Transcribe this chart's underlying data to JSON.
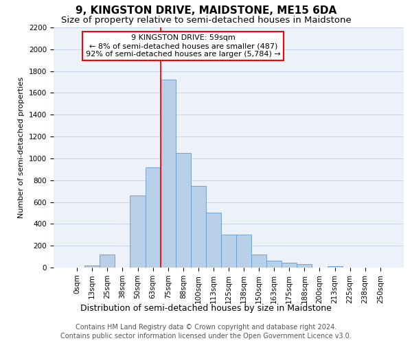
{
  "title1": "9, KINGSTON DRIVE, MAIDSTONE, ME15 6DA",
  "title2": "Size of property relative to semi-detached houses in Maidstone",
  "xlabel": "Distribution of semi-detached houses by size in Maidstone",
  "ylabel": "Number of semi-detached properties",
  "annotation_title": "9 KINGSTON DRIVE: 59sqm",
  "annotation_line1": "← 8% of semi-detached houses are smaller (487)",
  "annotation_line2": "92% of semi-detached houses are larger (5,784) →",
  "footer1": "Contains HM Land Registry data © Crown copyright and database right 2024.",
  "footer2": "Contains public sector information licensed under the Open Government Licence v3.0.",
  "bar_labels": [
    "0sqm",
    "13sqm",
    "25sqm",
    "38sqm",
    "50sqm",
    "63sqm",
    "75sqm",
    "88sqm",
    "100sqm",
    "113sqm",
    "125sqm",
    "138sqm",
    "150sqm",
    "163sqm",
    "175sqm",
    "188sqm",
    "200sqm",
    "213sqm",
    "225sqm",
    "238sqm",
    "250sqm"
  ],
  "bar_values": [
    0,
    20,
    120,
    0,
    660,
    920,
    1720,
    1050,
    750,
    500,
    300,
    300,
    120,
    65,
    45,
    30,
    0,
    10,
    0,
    0,
    0
  ],
  "bar_color": "#b8cfe8",
  "bar_edge_color": "#6699cc",
  "ylim": [
    0,
    2200
  ],
  "yticks": [
    0,
    200,
    400,
    600,
    800,
    1000,
    1200,
    1400,
    1600,
    1800,
    2000,
    2200
  ],
  "vline_x_index": 5.5,
  "grid_color": "#c8d4e8",
  "bg_color": "#edf2fa",
  "annotation_box_color": "white",
  "annotation_border_color": "red",
  "vline_color": "red",
  "title1_fontsize": 11,
  "title2_fontsize": 9.5,
  "annot_fontsize": 8,
  "footer_fontsize": 7,
  "ylabel_fontsize": 8,
  "xlabel_fontsize": 9,
  "tick_fontsize": 7.5
}
